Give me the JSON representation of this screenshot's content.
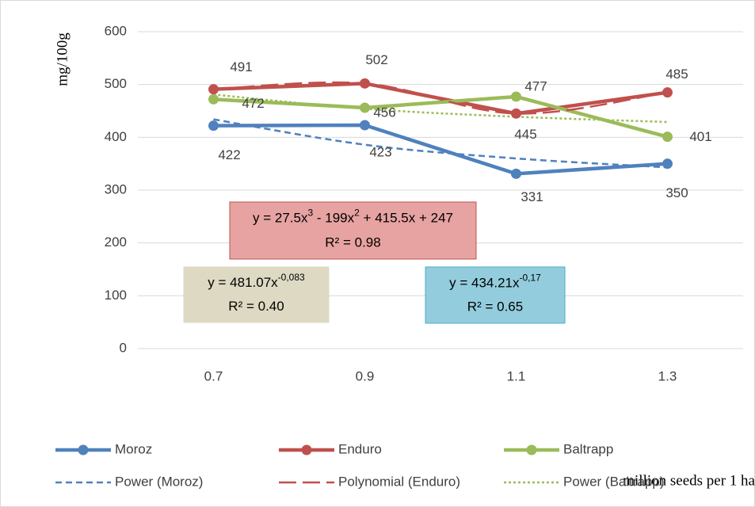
{
  "chart_data": {
    "type": "line",
    "y_label": "mg/100g",
    "x_label": "million seeds per 1 ha",
    "categories": [
      "0.7",
      "0.9",
      "1.1",
      "1.3"
    ],
    "ylim": [
      0,
      600
    ],
    "yticks": [
      0,
      100,
      200,
      300,
      400,
      500,
      600
    ],
    "grid": true,
    "series": [
      {
        "name": "Moroz",
        "color": "#4f81bd",
        "values": [
          422,
          423,
          331,
          350
        ]
      },
      {
        "name": "Enduro",
        "color": "#c0504d",
        "values": [
          491,
          502,
          445,
          485
        ]
      },
      {
        "name": "Baltrapp",
        "color": "#9bbb59",
        "values": [
          472,
          456,
          477,
          401
        ]
      }
    ],
    "trendlines": [
      {
        "name": "Power (Moroz)",
        "color": "#4f81bd",
        "style": "dash",
        "values": [
          434,
          386,
          360,
          343
        ]
      },
      {
        "name": "Polynomial (Enduro)",
        "color": "#c0504d",
        "style": "longdash",
        "values": [
          491,
          502,
          445,
          485
        ]
      },
      {
        "name": "Power (Baltrapp)",
        "color": "#9bbb59",
        "style": "dot",
        "values": [
          481,
          454,
          439,
          429
        ]
      }
    ],
    "equations": [
      {
        "text": [
          "y = 27.5x",
          "3",
          " - 199x",
          "2",
          " + 415.5x + 247"
        ],
        "r2": "R² = 0.98",
        "fill": "#e6a3a1",
        "stroke": "#c0504d"
      },
      {
        "text": [
          "y = 481.07x",
          "-0,083"
        ],
        "r2": "R² = 0.40",
        "fill": "#ddd9c3",
        "stroke": "#ddd9c3"
      },
      {
        "text": [
          "y = 434.21x",
          "-0,17"
        ],
        "r2": "R² = 0.65",
        "fill": "#93cddd",
        "stroke": "#4bacc6"
      }
    ]
  }
}
